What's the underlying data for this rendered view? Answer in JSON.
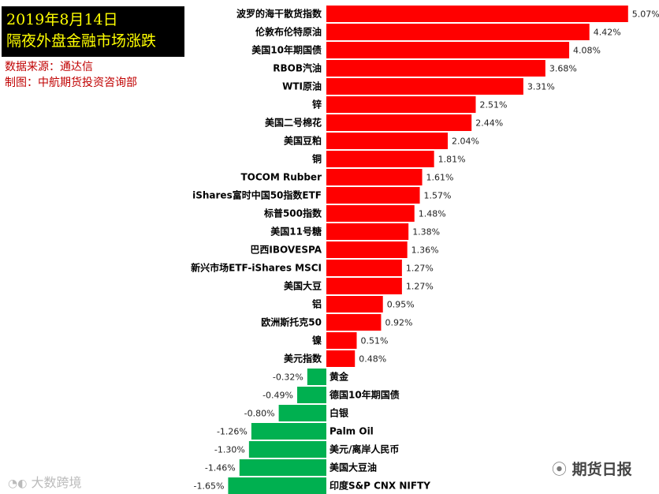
{
  "header": {
    "date": "2019年8月14日",
    "title": "隔夜外盘金融市场涨跌",
    "source": "数据来源：通达信",
    "producer": "制图：中航期货投资咨询部"
  },
  "watermarks": {
    "left": "大数跨境",
    "right": "期货日报"
  },
  "colors": {
    "positive": "#ff0000",
    "negative": "#00b050",
    "title_bg": "#000000",
    "title_text": "#ffff00",
    "source_text": "#c00000"
  },
  "chart_data": {
    "type": "bar",
    "orientation": "horizontal",
    "categories": [
      "波罗的海干散货指数",
      "伦敦布伦特原油",
      "美国10年期国债",
      "RBOB汽油",
      "WTI原油",
      "锌",
      "美国二号棉花",
      "美国豆粕",
      "铜",
      "TOCOM Rubber",
      "iShares富时中国50指数ETF",
      "标普500指数",
      "美国11号糖",
      "巴西IBOVESPA",
      "新兴市场ETF-iShares MSCI",
      "美国大豆",
      "铝",
      "欧洲斯托克50",
      "镍",
      "美元指数",
      "黄金",
      "德国10年期国债",
      "白银",
      "Palm Oil",
      "美元/离岸人民币",
      "美国大豆油",
      "印度S&P CNX NIFTY"
    ],
    "values": [
      5.07,
      4.42,
      4.08,
      3.68,
      3.31,
      2.51,
      2.44,
      2.04,
      1.81,
      1.61,
      1.57,
      1.48,
      1.38,
      1.36,
      1.27,
      1.27,
      0.95,
      0.92,
      0.51,
      0.48,
      -0.32,
      -0.49,
      -0.8,
      -1.26,
      -1.3,
      -1.46,
      -1.65
    ],
    "value_labels": [
      "5.07%",
      "4.42%",
      "4.08%",
      "3.68%",
      "3.31%",
      "2.51%",
      "2.44%",
      "2.04%",
      "1.81%",
      "1.61%",
      "1.57%",
      "1.48%",
      "1.38%",
      "1.36%",
      "1.27%",
      "1.27%",
      "0.95%",
      "0.92%",
      "0.51%",
      "0.48%",
      "-0.32%",
      "-0.49%",
      "-0.80%",
      "-1.26%",
      "-1.30%",
      "-1.46%",
      "-1.65%"
    ],
    "unit": "%",
    "title": "隔夜外盘金融市场涨跌",
    "xlabel": "",
    "ylabel": "",
    "grid": false,
    "legend": "none"
  }
}
